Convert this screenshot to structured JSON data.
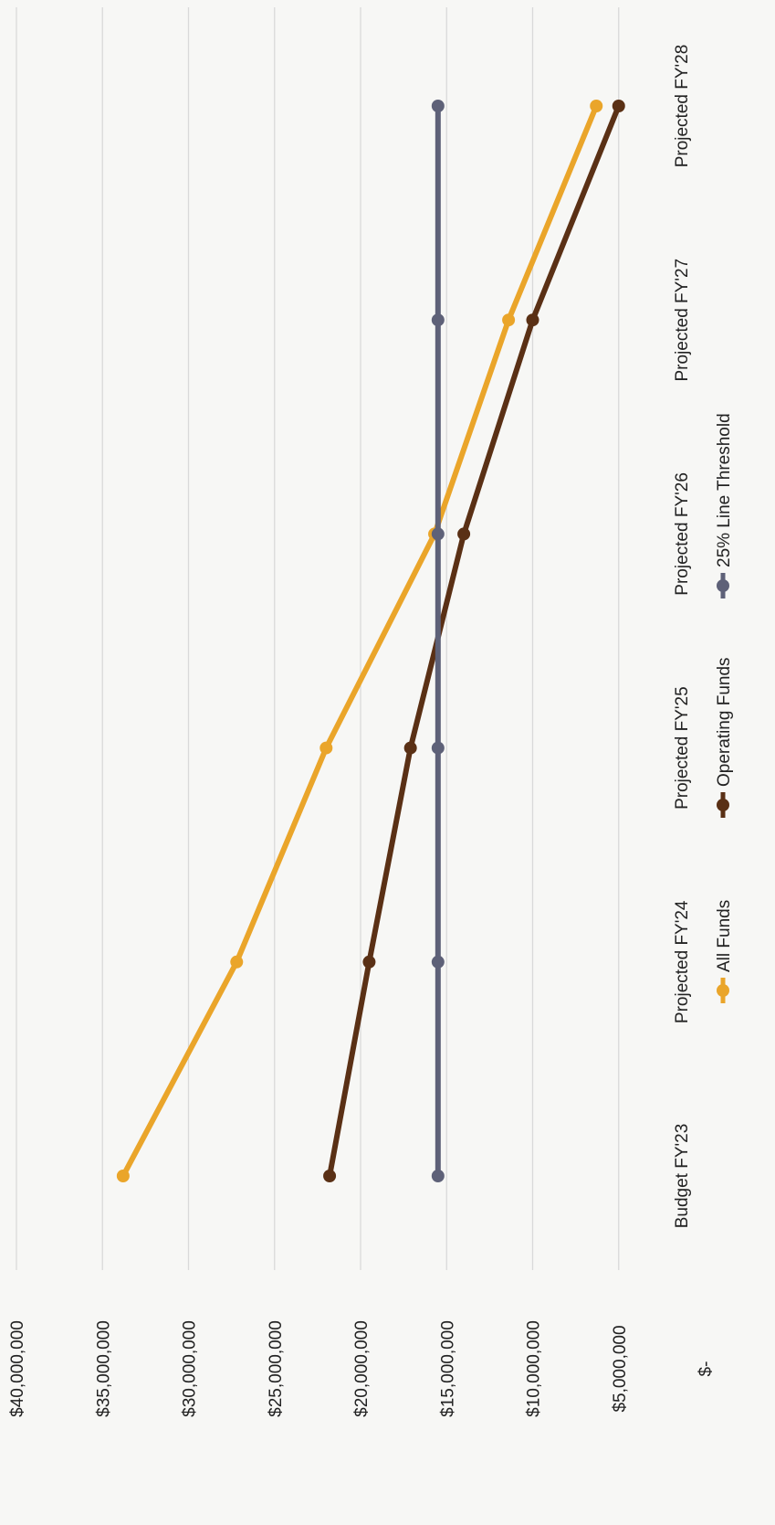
{
  "chart_data": {
    "type": "line",
    "orientation": "rotated-90-clockwise",
    "categories": [
      "Budget FY'23",
      "Projected FY'24",
      "Projected FY'25",
      "Projected FY'26",
      "Projected FY'27",
      "Projected FY'28"
    ],
    "series": [
      {
        "name": "All Funds",
        "color": "#EAA52A",
        "values": [
          33800000,
          27200000,
          22000000,
          15700000,
          11400000,
          6300000
        ]
      },
      {
        "name": "Operating Funds",
        "color": "#5A3015",
        "values": [
          21800000,
          19500000,
          17100000,
          14000000,
          10000000,
          5000000
        ]
      },
      {
        "name": "25% Line Threshold",
        "color": "#5E6178",
        "values": [
          15500000,
          15500000,
          15500000,
          15500000,
          15500000,
          15500000
        ]
      }
    ],
    "y_ticks": [
      "$-",
      "$5,000,000",
      "$10,000,000",
      "$15,000,000",
      "$20,000,000",
      "$25,000,000",
      "$30,000,000",
      "$35,000,000",
      "$40,000,000"
    ],
    "ylim": [
      0,
      40000000
    ],
    "grid": true,
    "legend_position": "bottom",
    "title": "",
    "xlabel": "",
    "ylabel": ""
  }
}
